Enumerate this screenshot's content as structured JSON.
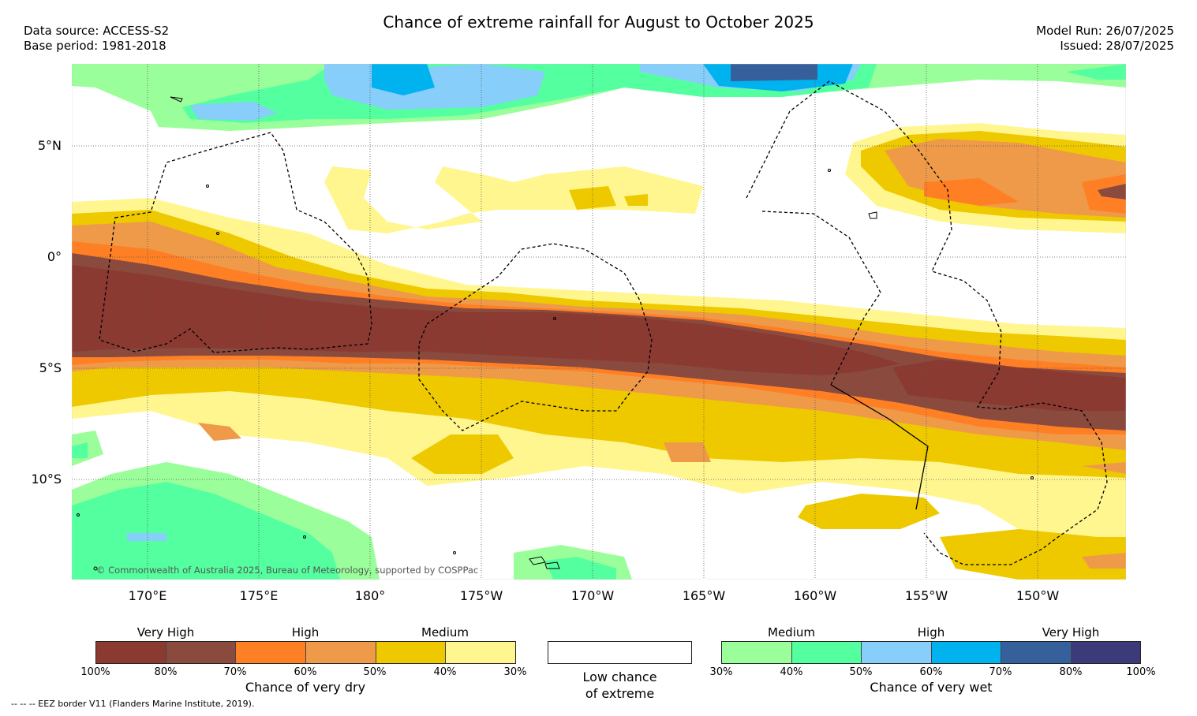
{
  "header": {
    "title": "Chance of extreme rainfall for August to October 2025",
    "data_source": "Data source: ACCESS-S2",
    "base_period": "Base period: 1981-2018",
    "model_run": "Model Run: 26/07/2025",
    "issued": "Issued: 28/07/2025"
  },
  "map": {
    "lat_labels": [
      "5°N",
      "0°",
      "5°S",
      "10°S"
    ],
    "lon_labels": [
      "170°E",
      "175°E",
      "180°",
      "175°W",
      "170°W",
      "165°W",
      "160°W",
      "155°W",
      "150°W"
    ],
    "copyright": "© Commonwealth of Australia 2025, Bureau of Meteorology, supported by COSPPac",
    "colors": {
      "dry_100_80": "#8B3A32",
      "dry_80_70": "#8B4A3E",
      "dry_70_60": "#FF7F24",
      "dry_60_50": "#EE9A49",
      "dry_50_40": "#EEC900",
      "dry_40_30": "#FFF68F",
      "wet_30_40": "#9AFF9A",
      "wet_40_50": "#54FF9F",
      "wet_50_60": "#87CEFA",
      "wet_60_70": "#00B2EE",
      "wet_70_80": "#36609C",
      "wet_80_100": "#3D3A7A"
    }
  },
  "legend": {
    "dry": {
      "categories": [
        "Very High",
        "High",
        "Medium"
      ],
      "ticks": [
        "100%",
        "80%",
        "70%",
        "60%",
        "50%",
        "40%",
        "30%"
      ],
      "caption": "Chance of very dry"
    },
    "low": {
      "caption_line1": "Low chance",
      "caption_line2": "of extreme"
    },
    "wet": {
      "categories": [
        "Medium",
        "High",
        "Very High"
      ],
      "ticks": [
        "30%",
        "40%",
        "50%",
        "60%",
        "70%",
        "80%",
        "100%"
      ],
      "caption": "Chance of very wet"
    }
  },
  "footer": {
    "eez_note": "--  --  -- EEZ border V11 (Flanders Marine Institute, 2019)."
  }
}
